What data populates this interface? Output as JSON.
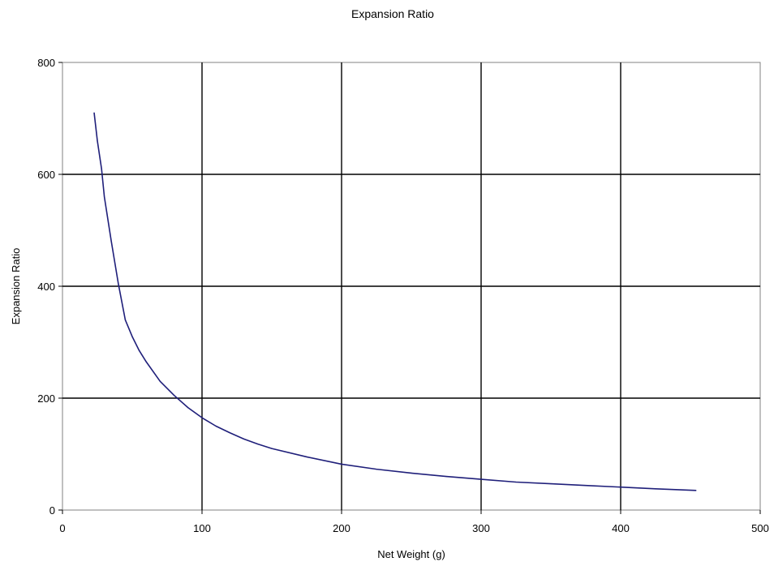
{
  "chart_data": {
    "type": "line",
    "title": "Expansion Ratio",
    "xlabel": "Net Weight (g)",
    "ylabel": "Expansion Ratio",
    "xlim": [
      0,
      500
    ],
    "ylim": [
      0,
      800
    ],
    "x_ticks": [
      "0",
      "100",
      "200",
      "300",
      "400",
      "500"
    ],
    "y_ticks": [
      "0",
      "200",
      "400",
      "600",
      "800"
    ],
    "grid": true,
    "legend": "none",
    "line_color": "#1f1f7a",
    "series": [
      {
        "x": [
          22.7,
          25,
          28,
          30,
          35,
          40,
          45,
          50,
          55,
          60,
          70,
          80,
          90,
          100,
          110,
          120,
          130,
          140,
          150,
          175,
          200,
          225,
          250,
          275,
          300,
          325,
          350,
          375,
          400,
          425,
          454
        ],
        "y": [
          710,
          660,
          610,
          560,
          480,
          405,
          340,
          310,
          285,
          265,
          230,
          205,
          183,
          165,
          150,
          138,
          127,
          118,
          110,
          95,
          82,
          73,
          66,
          60,
          55,
          50,
          47,
          44,
          41,
          38,
          35
        ]
      }
    ]
  }
}
